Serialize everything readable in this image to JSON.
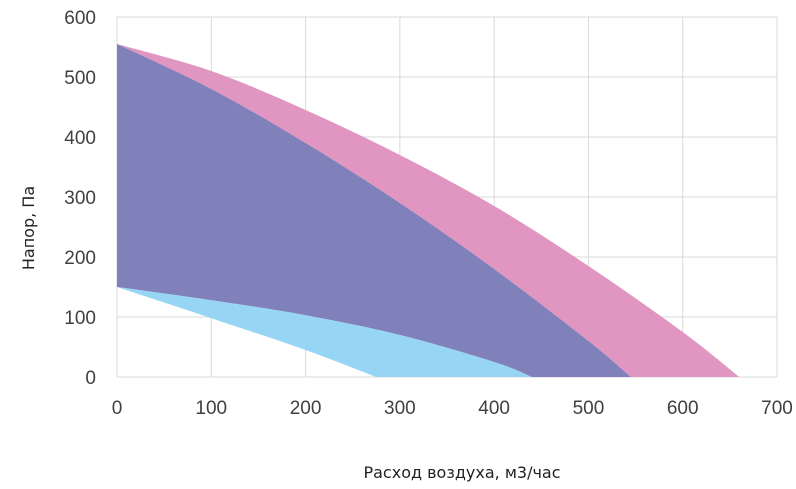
{
  "chart_data": {
    "type": "area",
    "xlabel": "Расход воздуха, м3/час",
    "ylabel": "Напор, Па",
    "xlim": [
      0,
      700
    ],
    "ylim": [
      0,
      600
    ],
    "xticks": [
      0,
      100,
      200,
      300,
      400,
      500,
      600,
      700
    ],
    "yticks": [
      0,
      100,
      200,
      300,
      400,
      500,
      600
    ],
    "grid": true,
    "legend": "none",
    "series": [
      {
        "color": "#e096c0",
        "upper": {
          "x": [
            0,
            100,
            200,
            300,
            400,
            500,
            600,
            660
          ],
          "y": [
            555,
            510,
            445,
            370,
            285,
            185,
            75,
            0
          ]
        },
        "lower": {
          "x": [
            0,
            100,
            200,
            300,
            400,
            500,
            545
          ],
          "y": [
            555,
            480,
            390,
            290,
            180,
            60,
            0
          ]
        }
      },
      {
        "color": "#8080ba",
        "upper": {
          "x": [
            0,
            100,
            200,
            300,
            400,
            500,
            545
          ],
          "y": [
            555,
            480,
            390,
            290,
            180,
            60,
            0
          ]
        },
        "lower": {
          "x": [
            0,
            100,
            200,
            300,
            400,
            440
          ],
          "y": [
            150,
            128,
            103,
            70,
            25,
            0
          ]
        }
      },
      {
        "color": "#96d6f4",
        "upper": {
          "x": [
            0,
            100,
            200,
            300,
            400,
            440
          ],
          "y": [
            150,
            128,
            103,
            70,
            25,
            0
          ]
        },
        "lower": {
          "x": [
            0,
            100,
            200,
            275
          ],
          "y": [
            150,
            98,
            45,
            0
          ]
        }
      }
    ]
  },
  "colors": {
    "grid": "#d9d9d9",
    "pink": "#e096c0",
    "purple": "#8080ba",
    "lightblue": "#96d6f4"
  }
}
